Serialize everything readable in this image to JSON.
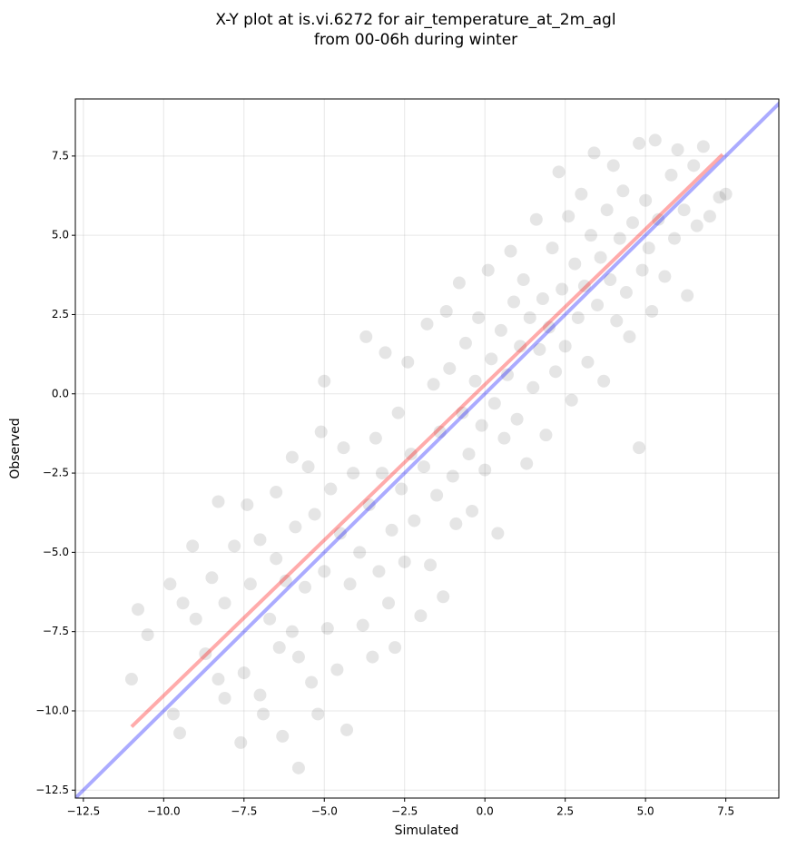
{
  "chart_data": {
    "type": "scatter",
    "title": "X-Y plot at is.vi.6272 for air_temperature_at_2m_agl",
    "subtitle": "from 00-06h during winter",
    "xlabel": "Simulated",
    "ylabel": "Observed",
    "xlim": [
      -12.75,
      9.15
    ],
    "ylim": [
      -12.75,
      9.3
    ],
    "xticks": [
      {
        "value": -12.5,
        "label": "−12.5"
      },
      {
        "value": -10,
        "label": "−10.0"
      },
      {
        "value": -7.5,
        "label": "−7.5"
      },
      {
        "value": -5,
        "label": "−5.0"
      },
      {
        "value": -2.5,
        "label": "−2.5"
      },
      {
        "value": 0,
        "label": "0.0"
      },
      2.5,
      {
        "value": 5,
        "label": "5.0"
      },
      7.5
    ],
    "yticks": [
      {
        "value": -12.5,
        "label": "−12.5"
      },
      {
        "value": -10,
        "label": "−10.0"
      },
      {
        "value": -7.5,
        "label": "−7.5"
      },
      {
        "value": -5,
        "label": "−5.0"
      },
      {
        "value": -2.5,
        "label": "−2.5"
      },
      {
        "value": 0,
        "label": "0.0"
      },
      2.5,
      {
        "value": 5,
        "label": "5.0"
      },
      7.5
    ],
    "grid": true,
    "series": [
      {
        "type": "scatter",
        "color": "#000000",
        "opacity": 0.1,
        "x": [
          -11,
          -10.8,
          -10.5,
          -9.8,
          -9.7,
          -9.5,
          -9.4,
          -9.1,
          -9,
          -8.7,
          -8.5,
          -8.3,
          -8.3,
          -8.1,
          -8.1,
          -7.8,
          -7.6,
          -7.5,
          -7.4,
          -7.3,
          -7,
          -7,
          -6.9,
          -6.7,
          -6.5,
          -6.5,
          -6.4,
          -6.3,
          -6.2,
          -6,
          -6,
          -5.9,
          -5.8,
          -5.8,
          -5.6,
          -5.5,
          -5.4,
          -5.3,
          -5.2,
          -5.1,
          -5,
          -5,
          -4.9,
          -4.8,
          -4.6,
          -4.5,
          -4.4,
          -4.3,
          -4.2,
          -4.1,
          -3.9,
          -3.8,
          -3.7,
          -3.6,
          -3.5,
          -3.4,
          -3.3,
          -3.2,
          -3.1,
          -3,
          -2.9,
          -2.8,
          -2.7,
          -2.6,
          -2.5,
          -2.4,
          -2.3,
          -2.2,
          -2,
          -1.9,
          -1.8,
          -1.7,
          -1.6,
          -1.5,
          -1.4,
          -1.3,
          -1.2,
          -1.1,
          -1,
          -0.9,
          -0.8,
          -0.7,
          -0.6,
          -0.5,
          -0.4,
          -0.3,
          -0.2,
          -0.1,
          0,
          0.1,
          0.2,
          0.3,
          0.4,
          0.5,
          0.6,
          0.7,
          0.8,
          0.9,
          1,
          1.1,
          1.2,
          1.3,
          1.4,
          1.5,
          1.6,
          1.7,
          1.8,
          1.9,
          2,
          2.1,
          2.2,
          2.3,
          2.4,
          2.5,
          2.6,
          2.7,
          2.8,
          2.9,
          3,
          3.1,
          3.2,
          3.3,
          3.4,
          3.5,
          3.6,
          3.7,
          3.8,
          3.9,
          4,
          4.1,
          4.2,
          4.3,
          4.4,
          4.5,
          4.6,
          4.8,
          4.8,
          4.9,
          5,
          5.1,
          5.2,
          5.3,
          5.4,
          5.6,
          5.8,
          5.9,
          6,
          6.2,
          6.3,
          6.5,
          6.6,
          6.8,
          7,
          7.3,
          7.5
        ],
        "values": [
          -9,
          -6.8,
          -7.6,
          -6,
          -10.1,
          -10.7,
          -6.6,
          -4.8,
          -7.1,
          -8.2,
          -5.8,
          -3.4,
          -9,
          -9.6,
          -6.6,
          -4.8,
          -11,
          -8.8,
          -3.5,
          -6,
          -9.5,
          -4.6,
          -10.1,
          -7.1,
          -3.1,
          -5.2,
          -8,
          -10.8,
          -5.9,
          -2,
          -7.5,
          -4.2,
          -8.3,
          -11.8,
          -6.1,
          -2.3,
          -9.1,
          -3.8,
          -10.1,
          -1.2,
          -5.6,
          0.4,
          -7.4,
          -3,
          -8.7,
          -4.4,
          -1.7,
          -10.6,
          -6,
          -2.5,
          -5,
          -7.3,
          1.8,
          -3.5,
          -8.3,
          -1.4,
          -5.6,
          -2.5,
          1.3,
          -6.6,
          -4.3,
          -8,
          -0.6,
          -3,
          -5.3,
          1,
          -1.9,
          -4,
          -7,
          -2.3,
          2.2,
          -5.4,
          0.3,
          -3.2,
          -1.2,
          -6.4,
          2.6,
          0.8,
          -2.6,
          -4.1,
          3.5,
          -0.6,
          1.6,
          -1.9,
          -3.7,
          0.4,
          2.4,
          -1,
          -2.4,
          3.9,
          1.1,
          -0.3,
          -4.4,
          2,
          -1.4,
          0.6,
          4.5,
          2.9,
          -0.8,
          1.5,
          3.6,
          -2.2,
          2.4,
          0.2,
          5.5,
          1.4,
          3,
          -1.3,
          2.1,
          4.6,
          0.7,
          7,
          3.3,
          1.5,
          5.6,
          -0.2,
          4.1,
          2.4,
          6.3,
          3.4,
          1,
          5,
          7.6,
          2.8,
          4.3,
          0.4,
          5.8,
          3.6,
          7.2,
          2.3,
          4.9,
          6.4,
          3.2,
          1.8,
          5.4,
          -1.7,
          7.9,
          3.9,
          6.1,
          4.6,
          2.6,
          8,
          5.5,
          3.7,
          6.9,
          4.9,
          7.7,
          5.8,
          3.1,
          7.2,
          5.3,
          7.8,
          5.6,
          6.2,
          6.3
        ]
      },
      {
        "type": "line",
        "color": "#0000ff",
        "opacity": 0.33,
        "x": [
          -12.75,
          9.3
        ],
        "values": [
          -12.75,
          9.3
        ]
      },
      {
        "type": "line",
        "color": "#ff0000",
        "opacity": 0.33,
        "x": [
          -11,
          7.4
        ],
        "values": [
          -10.5,
          7.55
        ]
      }
    ]
  }
}
